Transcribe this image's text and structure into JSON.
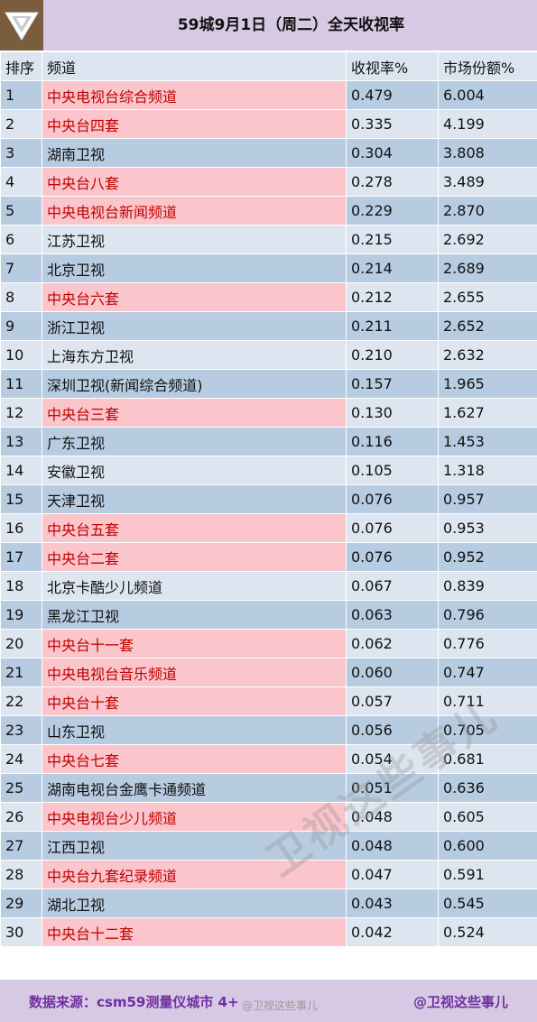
{
  "title": "59城9月1日（周二）全天收视率",
  "logo_icon": "triangle-v-logo-icon",
  "headers": [
    "排序",
    "频道",
    "收视率%",
    "市场份额%"
  ],
  "rows": [
    {
      "rank": "1",
      "channel": "中央电视台综合频道",
      "rating": "0.479",
      "share": "6.004",
      "cctv": true
    },
    {
      "rank": "2",
      "channel": "中央台四套",
      "rating": "0.335",
      "share": "4.199",
      "cctv": true
    },
    {
      "rank": "3",
      "channel": "湖南卫视",
      "rating": "0.304",
      "share": "3.808",
      "cctv": false
    },
    {
      "rank": "4",
      "channel": "中央台八套",
      "rating": "0.278",
      "share": "3.489",
      "cctv": true
    },
    {
      "rank": "5",
      "channel": "中央电视台新闻频道",
      "rating": "0.229",
      "share": "2.870",
      "cctv": true
    },
    {
      "rank": "6",
      "channel": "江苏卫视",
      "rating": "0.215",
      "share": "2.692",
      "cctv": false
    },
    {
      "rank": "7",
      "channel": "北京卫视",
      "rating": "0.214",
      "share": "2.689",
      "cctv": false
    },
    {
      "rank": "8",
      "channel": "中央台六套",
      "rating": "0.212",
      "share": "2.655",
      "cctv": true
    },
    {
      "rank": "9",
      "channel": "浙江卫视",
      "rating": "0.211",
      "share": "2.652",
      "cctv": false
    },
    {
      "rank": "10",
      "channel": "上海东方卫视",
      "rating": "0.210",
      "share": "2.632",
      "cctv": false
    },
    {
      "rank": "11",
      "channel": "深圳卫视(新闻综合频道)",
      "rating": "0.157",
      "share": "1.965",
      "cctv": false
    },
    {
      "rank": "12",
      "channel": "中央台三套",
      "rating": "0.130",
      "share": "1.627",
      "cctv": true
    },
    {
      "rank": "13",
      "channel": "广东卫视",
      "rating": "0.116",
      "share": "1.453",
      "cctv": false
    },
    {
      "rank": "14",
      "channel": "安徽卫视",
      "rating": "0.105",
      "share": "1.318",
      "cctv": false
    },
    {
      "rank": "15",
      "channel": "天津卫视",
      "rating": "0.076",
      "share": "0.957",
      "cctv": false
    },
    {
      "rank": "16",
      "channel": "中央台五套",
      "rating": "0.076",
      "share": "0.953",
      "cctv": true
    },
    {
      "rank": "17",
      "channel": "中央台二套",
      "rating": "0.076",
      "share": "0.952",
      "cctv": true
    },
    {
      "rank": "18",
      "channel": "北京卡酷少儿频道",
      "rating": "0.067",
      "share": "0.839",
      "cctv": false
    },
    {
      "rank": "19",
      "channel": "黑龙江卫视",
      "rating": "0.063",
      "share": "0.796",
      "cctv": false
    },
    {
      "rank": "20",
      "channel": "中央台十一套",
      "rating": "0.062",
      "share": "0.776",
      "cctv": true
    },
    {
      "rank": "21",
      "channel": "中央电视台音乐频道",
      "rating": "0.060",
      "share": "0.747",
      "cctv": true
    },
    {
      "rank": "22",
      "channel": "中央台十套",
      "rating": "0.057",
      "share": "0.711",
      "cctv": true
    },
    {
      "rank": "23",
      "channel": "山东卫视",
      "rating": "0.056",
      "share": "0.705",
      "cctv": false
    },
    {
      "rank": "24",
      "channel": "中央台七套",
      "rating": "0.054",
      "share": "0.681",
      "cctv": true
    },
    {
      "rank": "25",
      "channel": "湖南电视台金鹰卡通频道",
      "rating": "0.051",
      "share": "0.636",
      "cctv": false
    },
    {
      "rank": "26",
      "channel": "中央电视台少儿频道",
      "rating": "0.048",
      "share": "0.605",
      "cctv": true
    },
    {
      "rank": "27",
      "channel": "江西卫视",
      "rating": "0.048",
      "share": "0.600",
      "cctv": false
    },
    {
      "rank": "28",
      "channel": "中央台九套纪录频道",
      "rating": "0.047",
      "share": "0.591",
      "cctv": true
    },
    {
      "rank": "29",
      "channel": "湖北卫视",
      "rating": "0.043",
      "share": "0.545",
      "cctv": false
    },
    {
      "rank": "30",
      "channel": "中央台十二套",
      "rating": "0.042",
      "share": "0.524",
      "cctv": true
    }
  ],
  "footer": {
    "source": "数据来源：csm59测量仪城市 4+",
    "handle": "@卫视这些事儿",
    "weibo_mark": "@卫视这些事儿",
    "watermark": "卫视这些事儿"
  },
  "colors": {
    "header_bg": "#d7c9e4",
    "row_dark": "#b7cbe1",
    "row_light": "#dde6f0",
    "cctv_bg": "#fbc5cc",
    "cctv_text": "#c00000",
    "footer_text": "#6f2fa0"
  }
}
